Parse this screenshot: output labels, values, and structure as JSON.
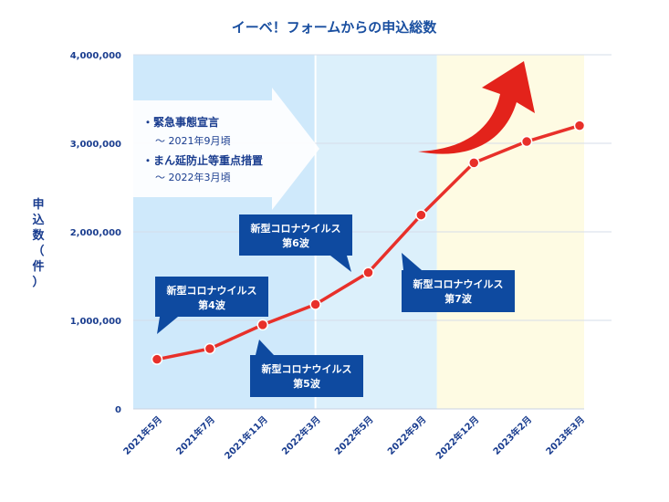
{
  "chart_data": {
    "type": "line",
    "title": "イーベ！フォームからの申込総数",
    "ylabel": "申込数（件）",
    "ylim": [
      0,
      4000000
    ],
    "yticks": [
      {
        "value": 0,
        "label": "0"
      },
      {
        "value": 1000000,
        "label": "1,000,000"
      },
      {
        "value": 2000000,
        "label": "2,000,000"
      },
      {
        "value": 3000000,
        "label": "3,000,000"
      },
      {
        "value": 4000000,
        "label": "4,000,000"
      }
    ],
    "categories": [
      "2021年5月",
      "2021年7月",
      "2021年11月",
      "2022年3月",
      "2022年5月",
      "2022年9月",
      "2022年12月",
      "2023年2月",
      "2023年3月"
    ],
    "series": [
      {
        "values": [
          560000,
          680000,
          950000,
          1180000,
          1540000,
          2190000,
          2780000,
          3020000,
          3200000
        ]
      }
    ],
    "grid": true,
    "colors": {
      "line": "#e8302a",
      "axis_text": "#1a3d8f",
      "callout": "#0e4aa0",
      "band_1": "#cfe9fb",
      "band_2": "#dcf0fb",
      "band_3": "#fefbe3",
      "arrow": "#e3231b"
    },
    "bands": [
      {
        "from_value": 0,
        "to_value": 3,
        "color_key": "band_1"
      },
      {
        "from_value": 3,
        "to_value": 5.3,
        "color_key": "band_2"
      },
      {
        "from_value": 5.3,
        "to_value": 8,
        "color_key": "band_3"
      }
    ],
    "note": {
      "lines": [
        {
          "text": "・緊急事態宣言",
          "style": "main"
        },
        {
          "text": "〜 2021年9月頃",
          "style": "sub"
        },
        {
          "text": "・まん延防止等重点措置",
          "style": "main"
        },
        {
          "text": "〜 2022年3月頃",
          "style": "sub"
        }
      ]
    },
    "callouts": [
      {
        "line1": "新型コロナウイルス",
        "line2": "第4波"
      },
      {
        "line1": "新型コロナウイルス",
        "line2": "第5波"
      },
      {
        "line1": "新型コロナウイルス",
        "line2": "第6波"
      },
      {
        "line1": "新型コロナウイルス",
        "line2": "第7波"
      }
    ]
  }
}
